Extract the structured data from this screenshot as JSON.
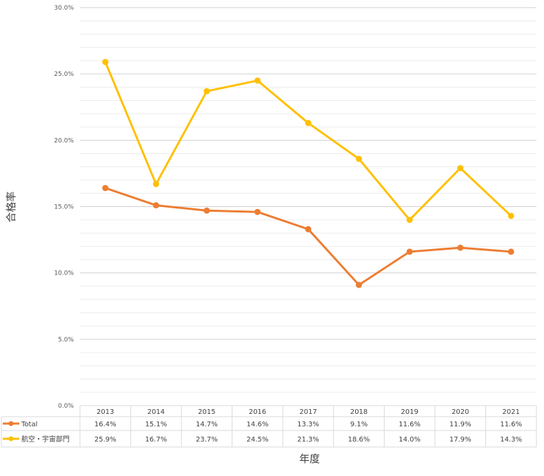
{
  "chart_data": {
    "type": "line",
    "xlabel": "年度",
    "ylabel": "合格率",
    "categories": [
      "2013",
      "2014",
      "2015",
      "2016",
      "2017",
      "2018",
      "2019",
      "2020",
      "2021"
    ],
    "y_ticks": [
      "0.0%",
      "5.0%",
      "10.0%",
      "15.0%",
      "20.0%",
      "25.0%",
      "30.0%"
    ],
    "ylim": [
      0,
      30
    ],
    "grid": true,
    "legend": "data-table",
    "series": [
      {
        "name": "Total",
        "color": "#ED7D31",
        "values": [
          16.4,
          15.1,
          14.7,
          14.6,
          13.3,
          9.1,
          11.6,
          11.9,
          11.6
        ],
        "labels": [
          "16.4%",
          "15.1%",
          "14.7%",
          "14.6%",
          "13.3%",
          "9.1%",
          "11.6%",
          "11.9%",
          "11.6%"
        ]
      },
      {
        "name": "航空・宇宙部門",
        "color": "#FFC000",
        "values": [
          25.9,
          16.7,
          23.7,
          24.5,
          21.3,
          18.6,
          14.0,
          17.9,
          14.3
        ],
        "labels": [
          "25.9%",
          "16.7%",
          "23.7%",
          "24.5%",
          "21.3%",
          "18.6%",
          "14.0%",
          "17.9%",
          "14.3%"
        ]
      }
    ]
  }
}
